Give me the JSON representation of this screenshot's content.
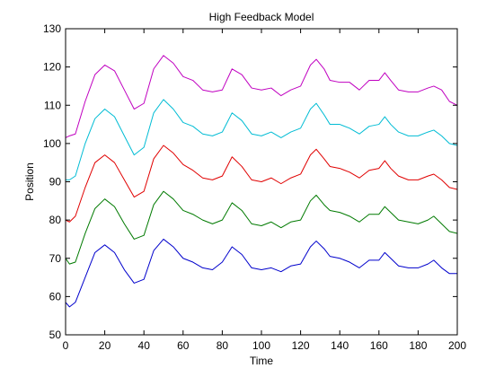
{
  "chart_data": {
    "type": "line",
    "title": "High Feedback Model",
    "xlabel": "Time",
    "ylabel": "Position",
    "xlim": [
      0,
      200
    ],
    "ylim": [
      50,
      130
    ],
    "xticks": [
      0,
      20,
      40,
      60,
      80,
      100,
      120,
      140,
      160,
      180,
      200
    ],
    "yticks": [
      50,
      60,
      70,
      80,
      90,
      100,
      110,
      120,
      130
    ],
    "grid": false,
    "legend": "none",
    "series": [
      {
        "color": "#0000cc",
        "x": [
          0,
          2,
          5,
          10,
          15,
          20,
          25,
          30,
          35,
          40,
          45,
          50,
          55,
          60,
          65,
          70,
          75,
          80,
          85,
          90,
          95,
          100,
          105,
          110,
          115,
          120,
          125,
          128,
          132,
          135,
          140,
          145,
          150,
          155,
          160,
          163,
          166,
          170,
          175,
          180,
          185,
          188,
          192,
          196,
          200
        ],
        "values": [
          58.5,
          57.3,
          58.5,
          65,
          71.5,
          73.5,
          71.5,
          67,
          63.5,
          64.5,
          72,
          75,
          73,
          70,
          69,
          67.5,
          67,
          69,
          73,
          71,
          67.5,
          67,
          67.5,
          66.5,
          68,
          68.5,
          73,
          74.5,
          72.5,
          70.5,
          70,
          69,
          67.5,
          69.5,
          69.5,
          71.5,
          70,
          68,
          67.5,
          67.5,
          68.5,
          69.5,
          67.5,
          66,
          66
        ]
      },
      {
        "color": "#007a00",
        "x": [
          0,
          2,
          5,
          10,
          15,
          20,
          25,
          30,
          35,
          40,
          45,
          50,
          55,
          60,
          65,
          70,
          75,
          80,
          85,
          90,
          95,
          100,
          105,
          110,
          115,
          120,
          125,
          128,
          132,
          135,
          140,
          145,
          150,
          155,
          160,
          163,
          166,
          170,
          175,
          180,
          185,
          188,
          192,
          196,
          200
        ],
        "values": [
          70,
          68.5,
          69,
          76.5,
          83,
          85.5,
          83.5,
          79,
          75,
          76,
          84,
          87.5,
          85.5,
          82.5,
          81.5,
          80,
          79,
          80,
          84.5,
          82.5,
          79,
          78.5,
          79.5,
          78,
          79.5,
          80,
          85,
          86.5,
          84,
          82.5,
          82,
          81,
          79.5,
          81.5,
          81.5,
          83.5,
          82,
          80,
          79.5,
          79,
          80,
          81,
          79,
          77,
          76.5
        ]
      },
      {
        "color": "#e00000",
        "x": [
          0,
          2,
          5,
          10,
          15,
          20,
          25,
          30,
          35,
          40,
          45,
          50,
          55,
          60,
          65,
          70,
          75,
          80,
          85,
          90,
          95,
          100,
          105,
          110,
          115,
          120,
          125,
          128,
          132,
          135,
          140,
          145,
          150,
          155,
          160,
          163,
          166,
          170,
          175,
          180,
          185,
          188,
          192,
          196,
          200
        ],
        "values": [
          80,
          79.5,
          81,
          88.5,
          95,
          97,
          95,
          90.5,
          86,
          87.5,
          96,
          99.5,
          97.5,
          94.5,
          93,
          91,
          90.5,
          91.5,
          96.5,
          94,
          90.5,
          90,
          91,
          89.5,
          91,
          92,
          97,
          98.5,
          96,
          94,
          93.5,
          92.5,
          91,
          93,
          93.5,
          95.5,
          93.5,
          91.5,
          90.5,
          90.5,
          91.5,
          92,
          90.5,
          88.5,
          88
        ]
      },
      {
        "color": "#00bcd4",
        "x": [
          0,
          2,
          5,
          10,
          15,
          20,
          25,
          30,
          35,
          40,
          45,
          50,
          55,
          60,
          65,
          70,
          75,
          80,
          85,
          90,
          95,
          100,
          105,
          110,
          115,
          120,
          125,
          128,
          132,
          135,
          140,
          145,
          150,
          155,
          160,
          163,
          166,
          170,
          175,
          180,
          185,
          188,
          192,
          196,
          200
        ],
        "values": [
          90.5,
          90.5,
          91.5,
          100,
          106.5,
          109,
          107,
          102,
          97,
          99,
          108,
          111.5,
          109,
          105.5,
          104.5,
          102.5,
          102,
          103,
          108,
          106,
          102.5,
          102,
          103,
          101.5,
          103,
          104,
          109,
          110.5,
          107.5,
          105,
          105,
          104,
          102.5,
          104.5,
          105,
          107,
          105,
          103,
          102,
          102,
          103,
          103.5,
          102,
          100,
          99.5
        ]
      },
      {
        "color": "#c000c0",
        "x": [
          0,
          2,
          5,
          10,
          15,
          20,
          25,
          30,
          35,
          40,
          45,
          50,
          55,
          60,
          65,
          70,
          75,
          80,
          85,
          90,
          95,
          100,
          105,
          110,
          115,
          120,
          125,
          128,
          132,
          135,
          140,
          145,
          150,
          155,
          160,
          163,
          166,
          170,
          175,
          180,
          185,
          188,
          192,
          196,
          200
        ],
        "values": [
          101.5,
          102,
          102.5,
          111,
          118,
          120.5,
          119,
          114,
          109,
          110.5,
          119.5,
          123,
          121,
          117.5,
          116.5,
          114,
          113.5,
          114,
          119.5,
          118,
          114.5,
          114,
          114.5,
          112.5,
          114,
          115,
          120.5,
          122,
          119.5,
          116.5,
          116,
          116,
          114,
          116.5,
          116.5,
          118.5,
          116.5,
          114,
          113.5,
          113.5,
          114.5,
          115,
          114,
          111,
          110
        ]
      }
    ]
  }
}
